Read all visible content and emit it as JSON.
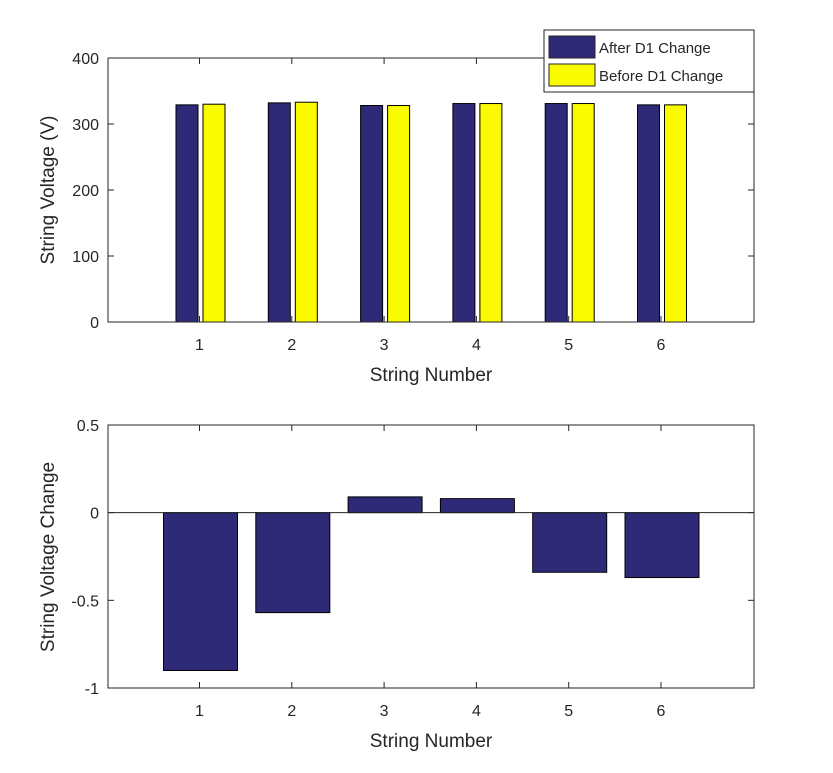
{
  "colors": {
    "after": "#2e2a78",
    "before": "#fbfb00",
    "axis": "#262626",
    "zero_line": "#262626"
  },
  "chart_data": [
    {
      "type": "bar",
      "categories": [
        "1",
        "2",
        "3",
        "4",
        "5",
        "6"
      ],
      "series": [
        {
          "name": "After D1 Change",
          "values": [
            329,
            332,
            328,
            331,
            331,
            329
          ]
        },
        {
          "name": "Before D1 Change",
          "values": [
            330,
            333,
            328,
            331,
            331,
            329
          ]
        }
      ],
      "xlabel": "String Number",
      "ylabel": "String Voltage (V)",
      "ylim": [
        0,
        400
      ],
      "yticks": [
        "0",
        "100",
        "200",
        "300",
        "400"
      ],
      "grid": false,
      "legend": "top-right"
    },
    {
      "type": "bar",
      "categories": [
        "1",
        "2",
        "3",
        "4",
        "5",
        "6"
      ],
      "series": [
        {
          "values": [
            -0.9,
            -0.57,
            0.09,
            0.08,
            -0.34,
            -0.37
          ]
        }
      ],
      "xlabel": "String Number",
      "ylabel": "String Voltage Change",
      "ylim": [
        -1,
        0.5
      ],
      "yticks": [
        "-1",
        "-0.5",
        "0",
        "0.5"
      ],
      "grid": false
    }
  ]
}
